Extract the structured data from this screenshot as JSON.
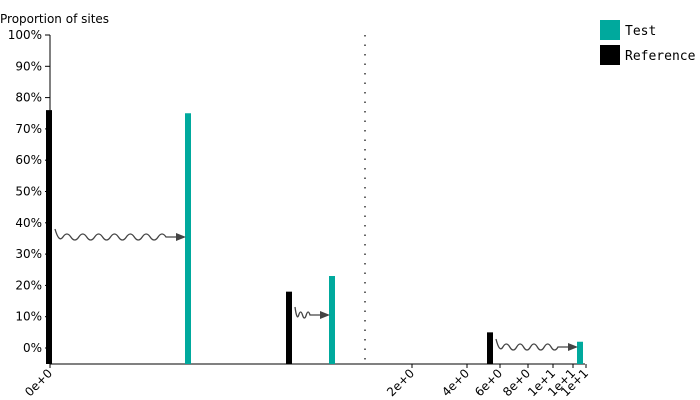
{
  "chart_data": {
    "type": "bar",
    "ylabel": "Proportion of sites",
    "ylim": [
      0,
      100
    ],
    "y_ticks": [
      "100%",
      "90%",
      "80%",
      "70%",
      "60%",
      "50%",
      "40%",
      "30%",
      "20%",
      "10%",
      "0%"
    ],
    "x_ticks": [
      "0e+0",
      "2e+0",
      "4e+0",
      "6e+0",
      "8e+0",
      "1e+1",
      "1e+1",
      "1e+1"
    ],
    "x_axis": "split: categorical groups left of divider, log-like numeric right of divider",
    "grid": false,
    "divider": "vertical dotted line",
    "legend": {
      "placement": "top-right",
      "entries": [
        {
          "name": "Test",
          "color": "#00a99d"
        },
        {
          "name": "Reference",
          "color": "#000000"
        }
      ]
    },
    "series": [
      {
        "name": "Reference",
        "color": "#000000",
        "values": [
          76,
          18,
          5
        ]
      },
      {
        "name": "Test",
        "color": "#00a99d",
        "values": [
          75,
          23,
          2
        ]
      }
    ],
    "groups": 3,
    "annotations": "wavy arrows from each Reference bar to its paired Test bar"
  }
}
